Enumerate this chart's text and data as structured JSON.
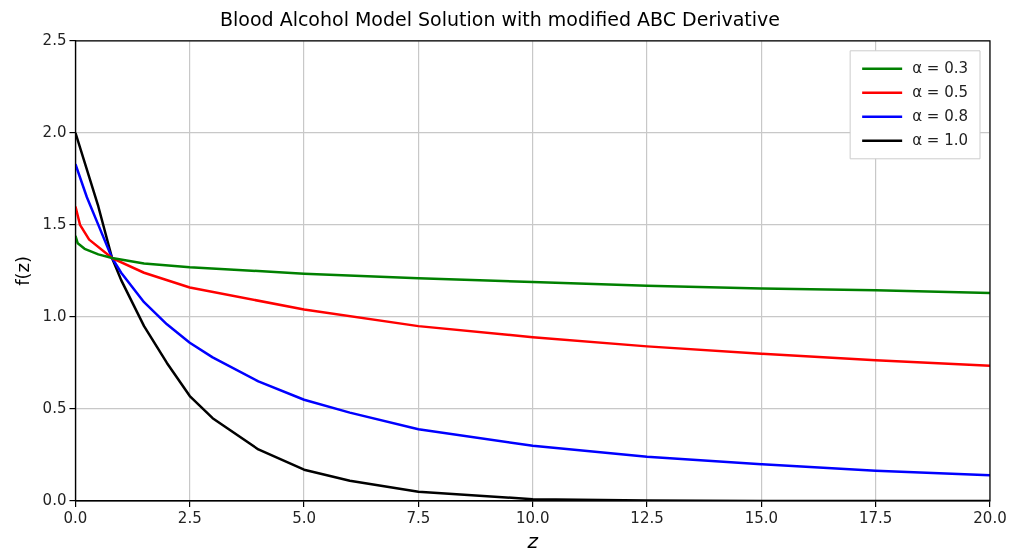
{
  "chart_data": {
    "type": "line",
    "title": "Blood Alcohol Model Solution with modified ABC Derivative",
    "xlabel": "z",
    "ylabel": "f(z)",
    "xlim": [
      0,
      20
    ],
    "xticks": [
      {
        "value": 0,
        "label": "0.0"
      },
      2.5,
      {
        "value": 5,
        "label": "5.0"
      },
      7.5,
      {
        "value": 10,
        "label": "10.0"
      },
      12.5,
      {
        "value": 15,
        "label": "15.0"
      },
      17.5,
      {
        "value": 20,
        "label": "20.0"
      }
    ],
    "ylim": [
      0,
      2.5
    ],
    "yticks": [
      {
        "value": 0,
        "label": "0.0"
      },
      0.5,
      {
        "value": 1,
        "label": "1.0"
      },
      1.5,
      {
        "value": 2,
        "label": "2.0"
      },
      2.5
    ],
    "grid": true,
    "legend": "top right",
    "marker": "none",
    "line_style": "solid",
    "series": [
      {
        "name": "α = 0.3",
        "color": "#008000",
        "x": [
          0,
          0.05,
          0.2,
          0.5,
          0.8,
          1.5,
          2.5,
          5,
          7.5,
          10,
          12.5,
          15,
          17.5,
          20
        ],
        "values": [
          1.44,
          1.4,
          1.37,
          1.34,
          1.32,
          1.29,
          1.27,
          1.235,
          1.21,
          1.19,
          1.17,
          1.155,
          1.145,
          1.13
        ]
      },
      {
        "name": "α = 0.5",
        "color": "#ff0000",
        "x": [
          0,
          0.1,
          0.3,
          0.8,
          1.5,
          2.5,
          5,
          7.5,
          10,
          12.5,
          15,
          17.5,
          20
        ],
        "values": [
          1.6,
          1.5,
          1.42,
          1.32,
          1.24,
          1.16,
          1.04,
          0.95,
          0.89,
          0.84,
          0.8,
          0.765,
          0.735
        ]
      },
      {
        "name": "α = 0.8",
        "color": "#0000ff",
        "x": [
          0,
          0.25,
          0.5,
          0.8,
          1,
          1.5,
          2,
          2.5,
          3,
          4,
          5,
          6,
          7.5,
          10,
          12.5,
          15,
          17.5,
          20
        ],
        "values": [
          1.83,
          1.65,
          1.5,
          1.32,
          1.24,
          1.08,
          0.96,
          0.86,
          0.78,
          0.65,
          0.55,
          0.48,
          0.39,
          0.3,
          0.24,
          0.2,
          0.165,
          0.14
        ]
      },
      {
        "name": "α = 1.0",
        "color": "#000000",
        "x": [
          0,
          0.5,
          0.8,
          1,
          1.5,
          2,
          2.5,
          3,
          4,
          5,
          6,
          7.5,
          10,
          12.5,
          15,
          20
        ],
        "values": [
          2.0,
          1.6,
          1.32,
          1.2,
          0.95,
          0.75,
          0.57,
          0.45,
          0.28,
          0.17,
          0.11,
          0.05,
          0.01,
          0.003,
          0,
          0
        ]
      }
    ]
  }
}
